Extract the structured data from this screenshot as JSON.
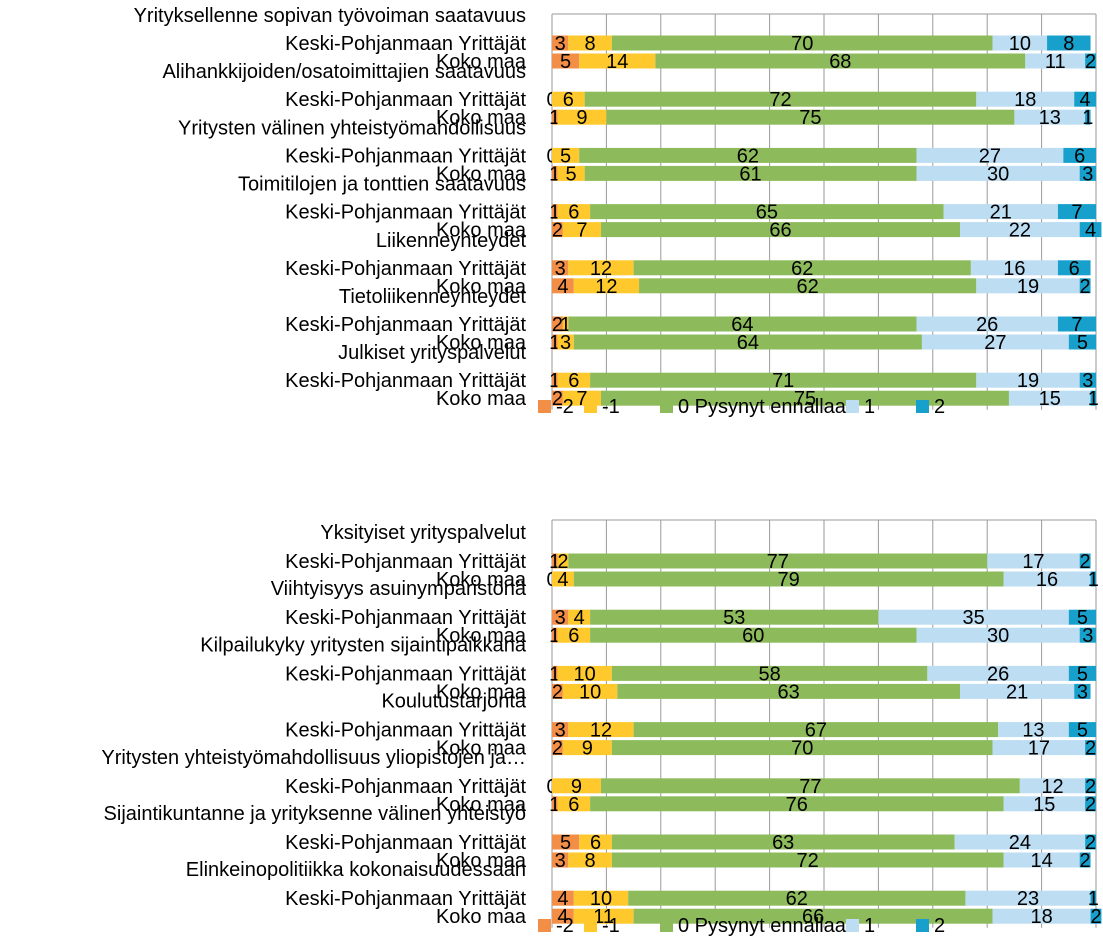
{
  "colors": {
    "-2": "#F28E45",
    "-1": "#FFC92E",
    "0": "#8DBB5C",
    "1": "#BCDDF2",
    "2": "#18A0CC"
  },
  "chart_data": [
    {
      "type": "bar",
      "orientation": "horizontal",
      "stacked": true,
      "grid": true,
      "xlim": [
        0,
        100
      ],
      "legend": [
        "-2",
        "-1",
        "0  Pysynyt ennallaan",
        "1",
        "2"
      ],
      "legend_position": "bottom",
      "groups": [
        {
          "title": "Yrityksellenne sopivan työvoiman saatavuus",
          "rows": [
            {
              "label": "Keski-Pohjanmaan Yrittäjät",
              "values": [
                3,
                8,
                70,
                10,
                8
              ]
            },
            {
              "label": "Koko maa",
              "values": [
                5,
                14,
                68,
                11,
                2
              ]
            }
          ]
        },
        {
          "title": "Alihankkijoiden/osatoimittajien saatavuus",
          "rows": [
            {
              "label": "Keski-Pohjanmaan Yrittäjät",
              "values": [
                0,
                6,
                72,
                18,
                4
              ]
            },
            {
              "label": "Koko maa",
              "values": [
                1,
                9,
                75,
                13,
                1
              ]
            }
          ]
        },
        {
          "title": "Yritysten välinen yhteistyömahdollisuus",
          "rows": [
            {
              "label": "Keski-Pohjanmaan Yrittäjät",
              "values": [
                0,
                5,
                62,
                27,
                6
              ]
            },
            {
              "label": "Koko maa",
              "values": [
                1,
                5,
                61,
                30,
                3
              ]
            }
          ]
        },
        {
          "title": "Toimitilojen ja tonttien saatavuus",
          "rows": [
            {
              "label": "Keski-Pohjanmaan Yrittäjät",
              "values": [
                1,
                6,
                65,
                21,
                7
              ]
            },
            {
              "label": "Koko maa",
              "values": [
                2,
                7,
                66,
                22,
                4
              ]
            }
          ]
        },
        {
          "title": "Liikenneyhteydet",
          "rows": [
            {
              "label": "Keski-Pohjanmaan Yrittäjät",
              "values": [
                3,
                12,
                62,
                16,
                6
              ]
            },
            {
              "label": "Koko maa",
              "values": [
                4,
                12,
                62,
                19,
                2
              ]
            }
          ]
        },
        {
          "title": "Tietoliikenneyhteydet",
          "rows": [
            {
              "label": "Keski-Pohjanmaan Yrittäjät",
              "values": [
                2,
                1,
                64,
                26,
                7
              ]
            },
            {
              "label": "Koko maa",
              "values": [
                1,
                3,
                64,
                27,
                5
              ]
            }
          ]
        },
        {
          "title": "Julkiset yrityspalvelut",
          "rows": [
            {
              "label": "Keski-Pohjanmaan Yrittäjät",
              "values": [
                1,
                6,
                71,
                19,
                3
              ]
            },
            {
              "label": "Koko maa",
              "values": [
                2,
                7,
                75,
                15,
                1
              ]
            }
          ]
        }
      ]
    },
    {
      "type": "bar",
      "orientation": "horizontal",
      "stacked": true,
      "grid": true,
      "xlim": [
        0,
        100
      ],
      "legend": [
        "-2",
        "-1",
        "0  Pysynyt ennallaan",
        "1",
        "2"
      ],
      "legend_position": "bottom",
      "groups": [
        {
          "title": "Yksityiset yrityspalvelut",
          "rows": [
            {
              "label": "Keski-Pohjanmaan Yrittäjät",
              "values": [
                1,
                2,
                77,
                17,
                2
              ]
            },
            {
              "label": "Koko maa",
              "values": [
                0,
                4,
                79,
                16,
                1
              ]
            }
          ]
        },
        {
          "title": "Viihtyisyys asuinympäristönä",
          "rows": [
            {
              "label": "Keski-Pohjanmaan Yrittäjät",
              "values": [
                3,
                4,
                53,
                35,
                5
              ]
            },
            {
              "label": "Koko maa",
              "values": [
                1,
                6,
                60,
                30,
                3
              ]
            }
          ]
        },
        {
          "title": "Kilpailukyky yritysten sijaintipaikkana",
          "rows": [
            {
              "label": "Keski-Pohjanmaan Yrittäjät",
              "values": [
                1,
                10,
                58,
                26,
                5
              ]
            },
            {
              "label": "Koko maa",
              "values": [
                2,
                10,
                63,
                21,
                3
              ]
            }
          ]
        },
        {
          "title": "Koulutustarjonta",
          "rows": [
            {
              "label": "Keski-Pohjanmaan Yrittäjät",
              "values": [
                3,
                12,
                67,
                13,
                5
              ]
            },
            {
              "label": "Koko maa",
              "values": [
                2,
                9,
                70,
                17,
                2
              ]
            }
          ]
        },
        {
          "title": "Yritysten yhteistyömahdollisuus yliopistojen ja…",
          "rows": [
            {
              "label": "Keski-Pohjanmaan Yrittäjät",
              "values": [
                0,
                9,
                77,
                12,
                2
              ]
            },
            {
              "label": "Koko maa",
              "values": [
                1,
                6,
                76,
                15,
                2
              ]
            }
          ]
        },
        {
          "title": "Sijaintikuntanne ja yrityksenne välinen yhteistyö",
          "rows": [
            {
              "label": "Keski-Pohjanmaan Yrittäjät",
              "values": [
                5,
                6,
                63,
                24,
                2
              ]
            },
            {
              "label": "Koko maa",
              "values": [
                3,
                8,
                72,
                14,
                2
              ]
            }
          ]
        },
        {
          "title": "Elinkeinopolitiikka kokonaisuudessaan",
          "rows": [
            {
              "label": "Keski-Pohjanmaan Yrittäjät",
              "values": [
                4,
                10,
                62,
                23,
                1
              ]
            },
            {
              "label": "Koko maa",
              "values": [
                4,
                11,
                66,
                18,
                2
              ]
            }
          ]
        }
      ]
    }
  ]
}
